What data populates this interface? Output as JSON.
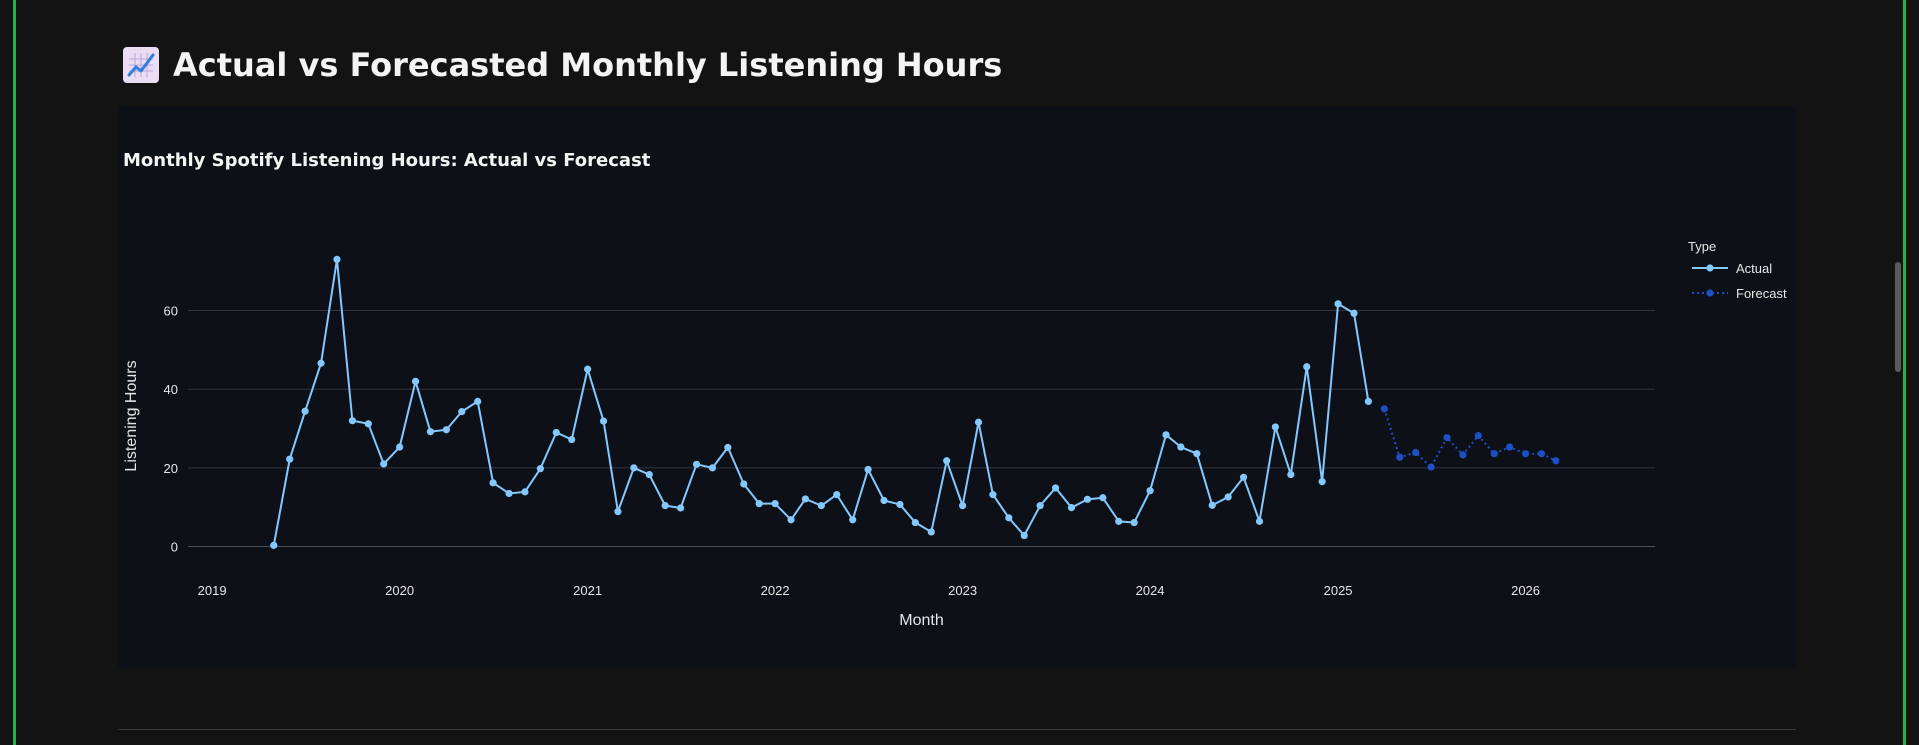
{
  "page": {
    "title": "Actual vs Forecasted Monthly Listening Hours",
    "title_icon": "chart-increasing-icon"
  },
  "chart_data": {
    "type": "line",
    "title": "Monthly Spotify Listening Hours: Actual vs Forecast",
    "xlabel": "Month",
    "ylabel": "Listening Hours",
    "x_axis": "date",
    "xlim": [
      "2018-11-15",
      "2026-09-10"
    ],
    "ylim": [
      -8,
      82
    ],
    "x_ticks": [
      "2019",
      "2020",
      "2021",
      "2022",
      "2023",
      "2024",
      "2025",
      "2026"
    ],
    "y_ticks": [
      0,
      20,
      40,
      60
    ],
    "grid": "horizontal",
    "legend": {
      "title": "Type",
      "placement": "right"
    },
    "series": [
      {
        "name": "Actual",
        "style": "solid",
        "color": "#83c9ff",
        "x": [
          "2019-05",
          "2019-06",
          "2019-07",
          "2019-08",
          "2019-09",
          "2019-10",
          "2019-11",
          "2019-12",
          "2020-01",
          "2020-02",
          "2020-03",
          "2020-04",
          "2020-05",
          "2020-06",
          "2020-07",
          "2020-08",
          "2020-09",
          "2020-10",
          "2020-11",
          "2020-12",
          "2021-01",
          "2021-02",
          "2021-03",
          "2021-04",
          "2021-05",
          "2021-06",
          "2021-07",
          "2021-08",
          "2021-09",
          "2021-10",
          "2021-11",
          "2021-12",
          "2022-01",
          "2022-02",
          "2022-03",
          "2022-04",
          "2022-05",
          "2022-06",
          "2022-07",
          "2022-08",
          "2022-09",
          "2022-10",
          "2022-11",
          "2022-12",
          "2023-01",
          "2023-02",
          "2023-03",
          "2023-04",
          "2023-05",
          "2023-06",
          "2023-07",
          "2023-08",
          "2023-09",
          "2023-10",
          "2023-11",
          "2023-12",
          "2024-01",
          "2024-02",
          "2024-03",
          "2024-04",
          "2024-05",
          "2024-06",
          "2024-07",
          "2024-08",
          "2024-09",
          "2024-10",
          "2024-11",
          "2024-12",
          "2025-01",
          "2025-02",
          "2025-03"
        ],
        "values": [
          0.3,
          22.2,
          34.4,
          46.6,
          73.0,
          32.0,
          31.2,
          21.0,
          25.3,
          42.0,
          29.2,
          29.7,
          34.3,
          36.9,
          16.2,
          13.5,
          13.9,
          19.8,
          29.0,
          27.2,
          45.1,
          31.9,
          8.9,
          20.0,
          18.3,
          10.4,
          9.8,
          20.9,
          20.0,
          25.2,
          15.9,
          10.9,
          10.9,
          6.8,
          12.1,
          10.4,
          13.2,
          6.8,
          19.6,
          11.7,
          10.7,
          6.1,
          3.7,
          21.8,
          10.4,
          31.6,
          13.2,
          7.3,
          2.8,
          10.4,
          14.9,
          9.9,
          12.0,
          12.4,
          6.4,
          6.1,
          14.2,
          28.4,
          25.3,
          23.6,
          10.5,
          12.6,
          17.6,
          6.4,
          30.4,
          18.3,
          45.7,
          16.5,
          61.7,
          59.3,
          36.9
        ]
      },
      {
        "name": "Forecast",
        "style": "dotted",
        "color": "#1f4fc4",
        "x": [
          "2025-04",
          "2025-05",
          "2025-06",
          "2025-07",
          "2025-08",
          "2025-09",
          "2025-10",
          "2025-11",
          "2025-12",
          "2026-01",
          "2026-02",
          "2026-03"
        ],
        "values": [
          35.0,
          22.7,
          23.9,
          20.2,
          27.7,
          23.3,
          28.2,
          23.6,
          25.3,
          23.6,
          23.6,
          21.8
        ]
      }
    ]
  }
}
